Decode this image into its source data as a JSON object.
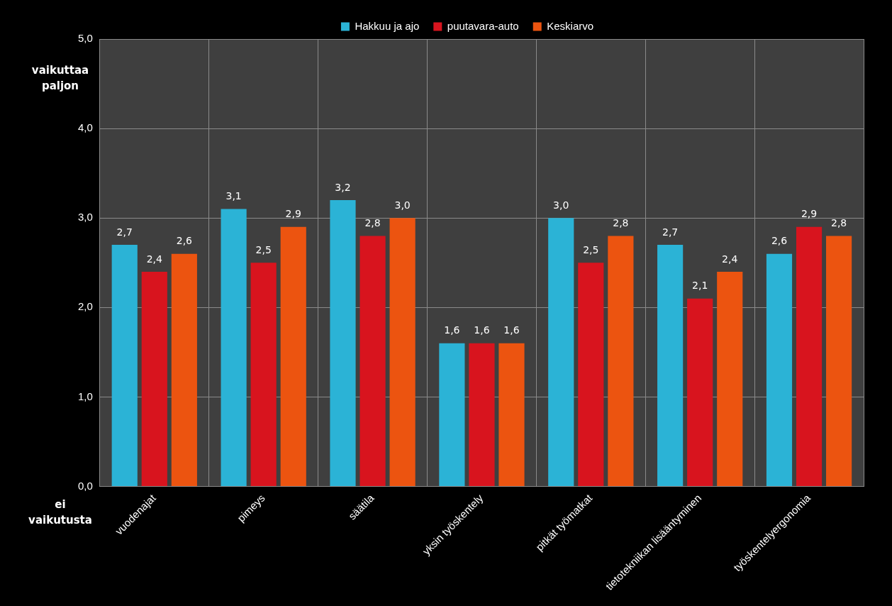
{
  "chart_data": {
    "type": "bar",
    "categories": [
      "vuodenajat",
      "pimeys",
      "säätila",
      "yksin työskentely",
      "pitkät työmatkat",
      "tietotekniikan lisääntyminen",
      "työskentelyergonomia"
    ],
    "series": [
      {
        "name": "Hakkuu ja ajo",
        "color": "#2bb3d6",
        "values": [
          2.7,
          3.1,
          3.2,
          1.6,
          3.0,
          2.7,
          2.6
        ],
        "value_labels": [
          "2,7",
          "3,1",
          "3,2",
          "1,6",
          "3,0",
          "2,7",
          "2,6"
        ]
      },
      {
        "name": "puutavara-auto",
        "color": "#d8141e",
        "values": [
          2.4,
          2.5,
          2.8,
          1.6,
          2.5,
          2.1,
          2.9
        ],
        "value_labels": [
          "2,4",
          "2,5",
          "2,8",
          "1,6",
          "2,5",
          "2,1",
          "2,9"
        ]
      },
      {
        "name": "Keskiarvo",
        "color": "#ec5410",
        "values": [
          2.6,
          2.9,
          3.0,
          1.6,
          2.8,
          2.4,
          2.8
        ],
        "value_labels": [
          "2,6",
          "2,9",
          "3,0",
          "1,6",
          "2,8",
          "2,4",
          "2,8"
        ]
      }
    ],
    "ylim": [
      0,
      5
    ],
    "yticks": [
      {
        "value": 0,
        "label": "0,0"
      },
      {
        "value": 1,
        "label": "1,0"
      },
      {
        "value": 2,
        "label": "2,0"
      },
      {
        "value": 3,
        "label": "3,0"
      },
      {
        "value": 4,
        "label": "4,0"
      },
      {
        "value": 5,
        "label": "5,0"
      }
    ],
    "grid": true,
    "legend": "top",
    "annotations": [
      "vaikuttaa paljon",
      "ei vaikutusta"
    ]
  }
}
